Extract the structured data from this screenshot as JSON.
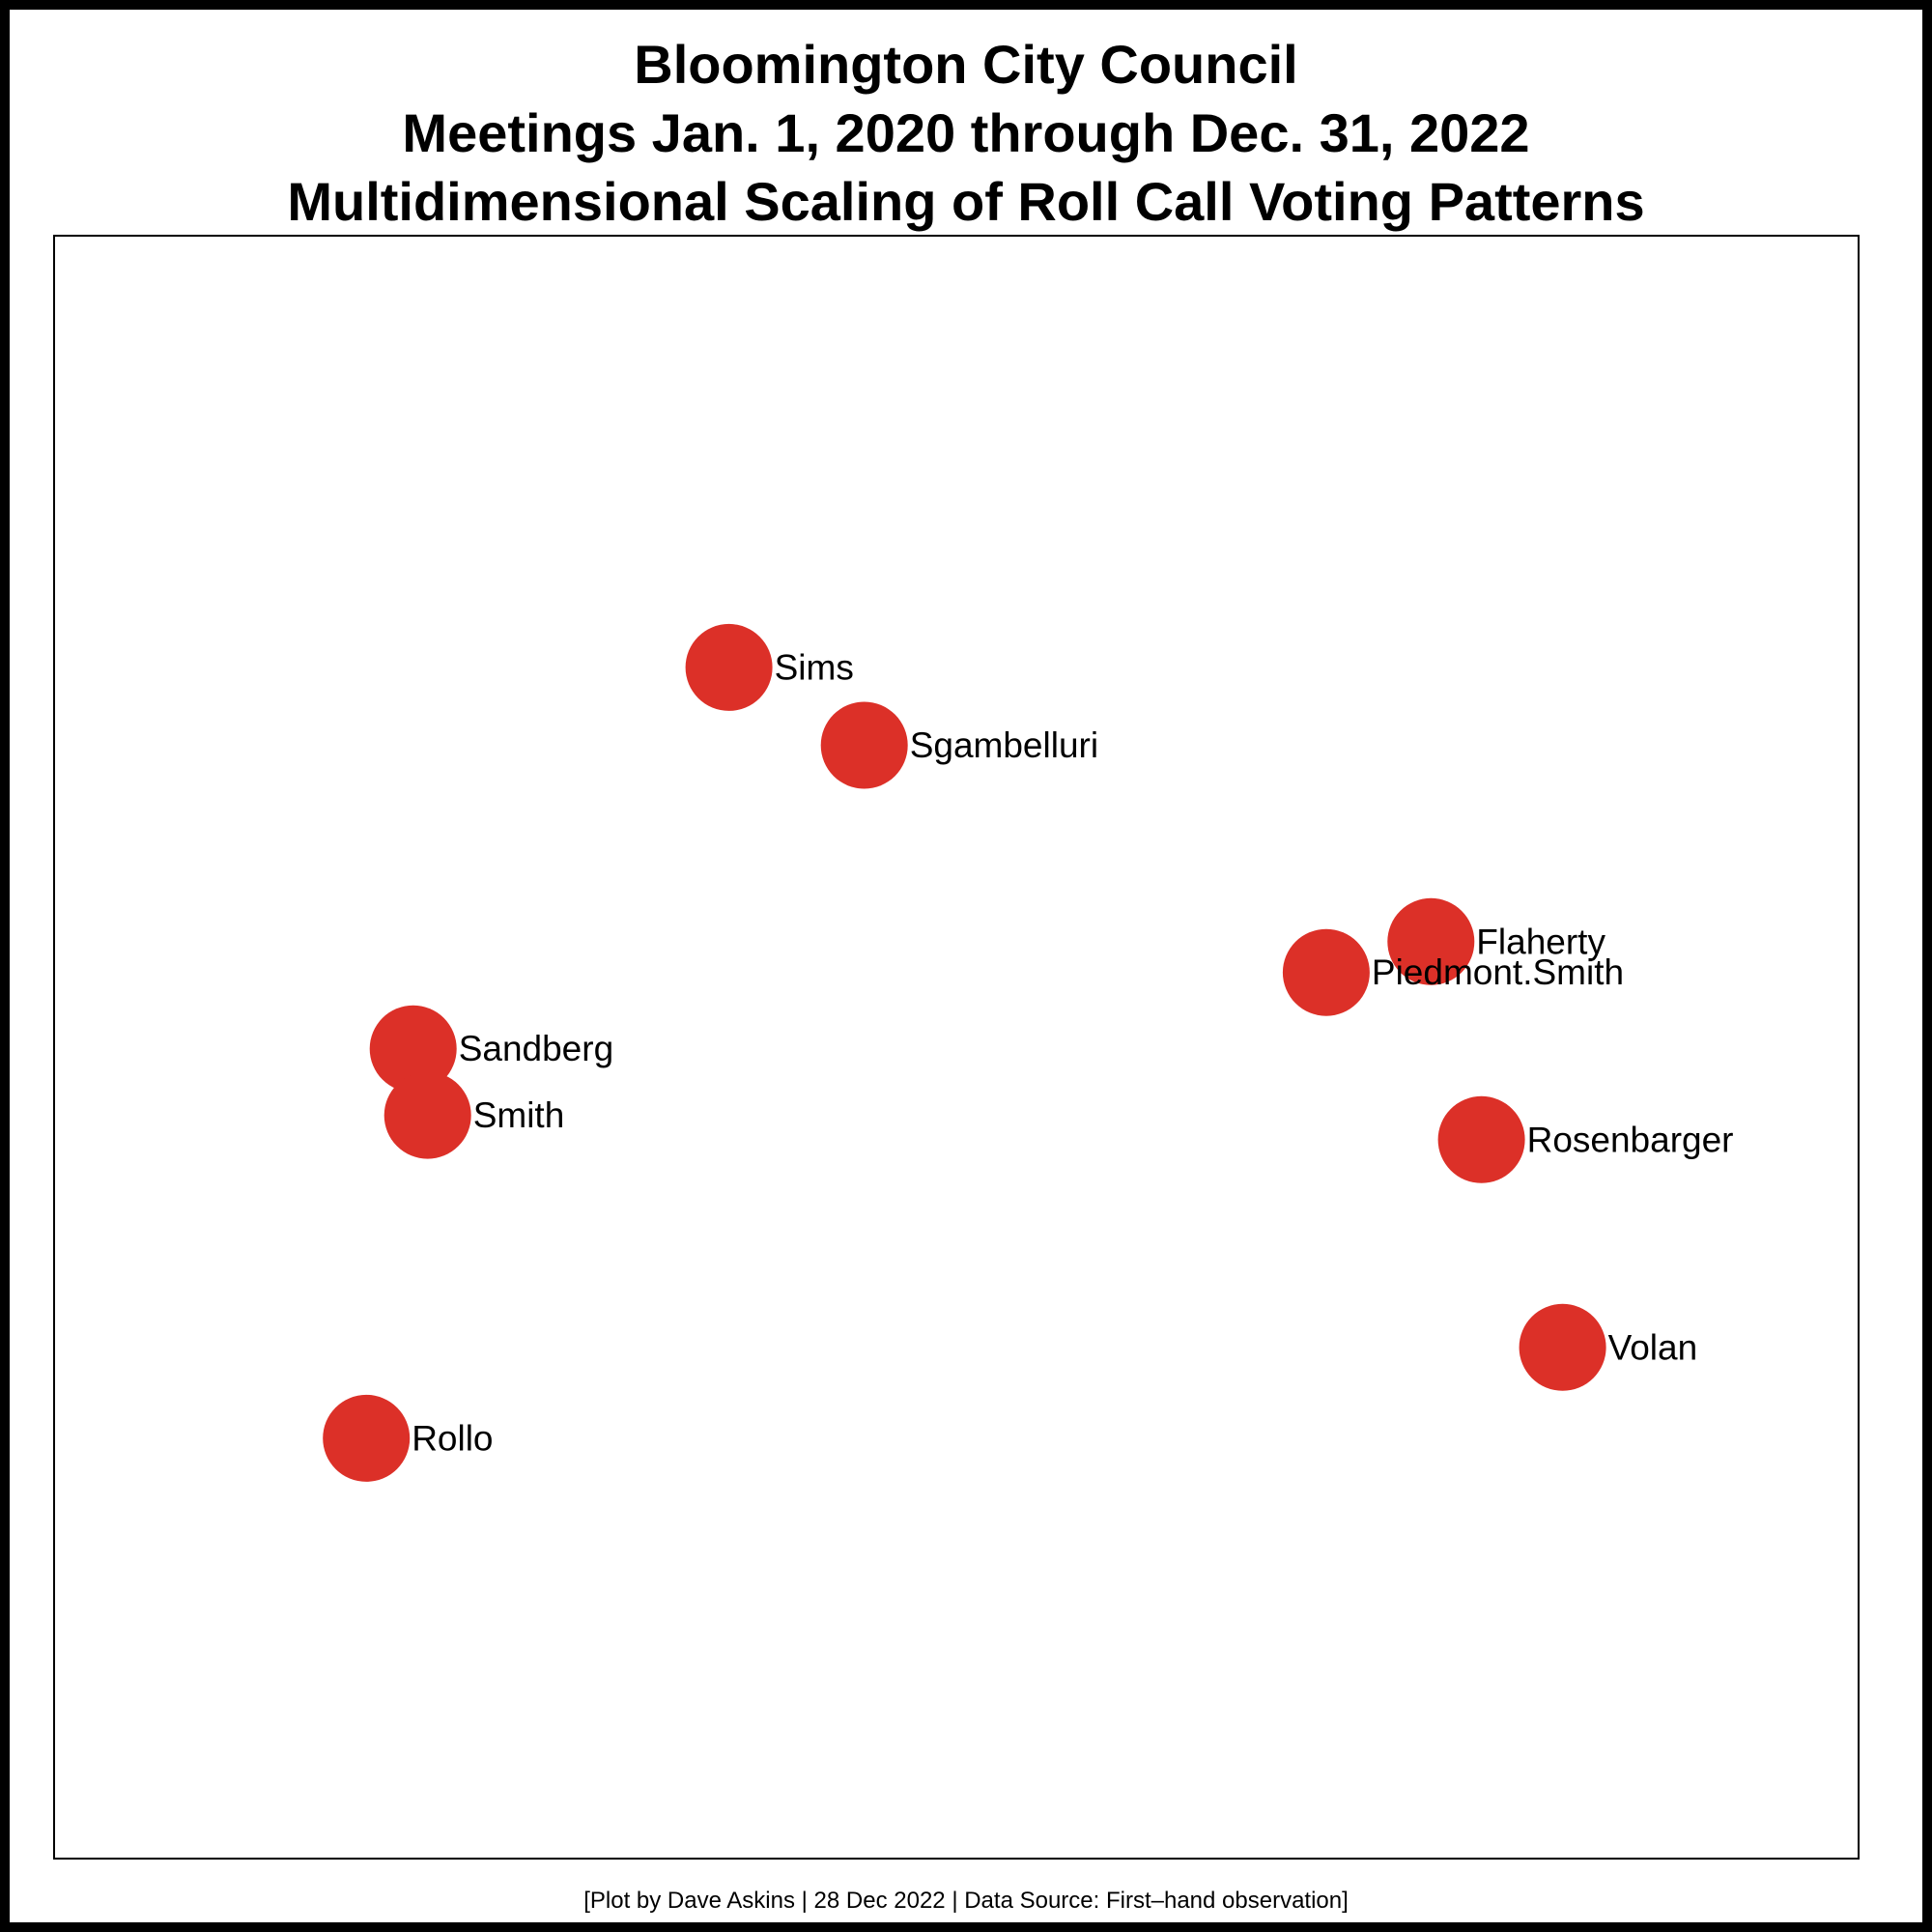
{
  "chart_data": {
    "type": "scatter",
    "title": [
      "Bloomington City Council",
      "Meetings Jan. 1, 2020 through Dec. 31, 2022",
      "Multidimensional Scaling of Roll Call Voting Patterns"
    ],
    "caption": "[Plot by Dave Askins | 28 Dec 2022 | Data Source: First–hand observation]",
    "xlabel": "",
    "ylabel": "",
    "axes_visible": false,
    "grid": false,
    "point_color": "#dc3028",
    "xlim": [
      0,
      100
    ],
    "ylim": [
      0,
      100
    ],
    "points": [
      {
        "label": "Sims",
        "x": 37.4,
        "y": 73.4
      },
      {
        "label": "Sgambelluri",
        "x": 44.9,
        "y": 68.6
      },
      {
        "label": "Flaherty",
        "x": 76.3,
        "y": 56.5
      },
      {
        "label": "Piedmont.Smith",
        "x": 70.5,
        "y": 54.6
      },
      {
        "label": "Sandberg",
        "x": 19.9,
        "y": 49.9
      },
      {
        "label": "Smith",
        "x": 20.7,
        "y": 45.8
      },
      {
        "label": "Rosenbarger",
        "x": 79.1,
        "y": 44.3
      },
      {
        "label": "Volan",
        "x": 83.6,
        "y": 31.5
      },
      {
        "label": "Rollo",
        "x": 17.3,
        "y": 25.9
      }
    ]
  }
}
